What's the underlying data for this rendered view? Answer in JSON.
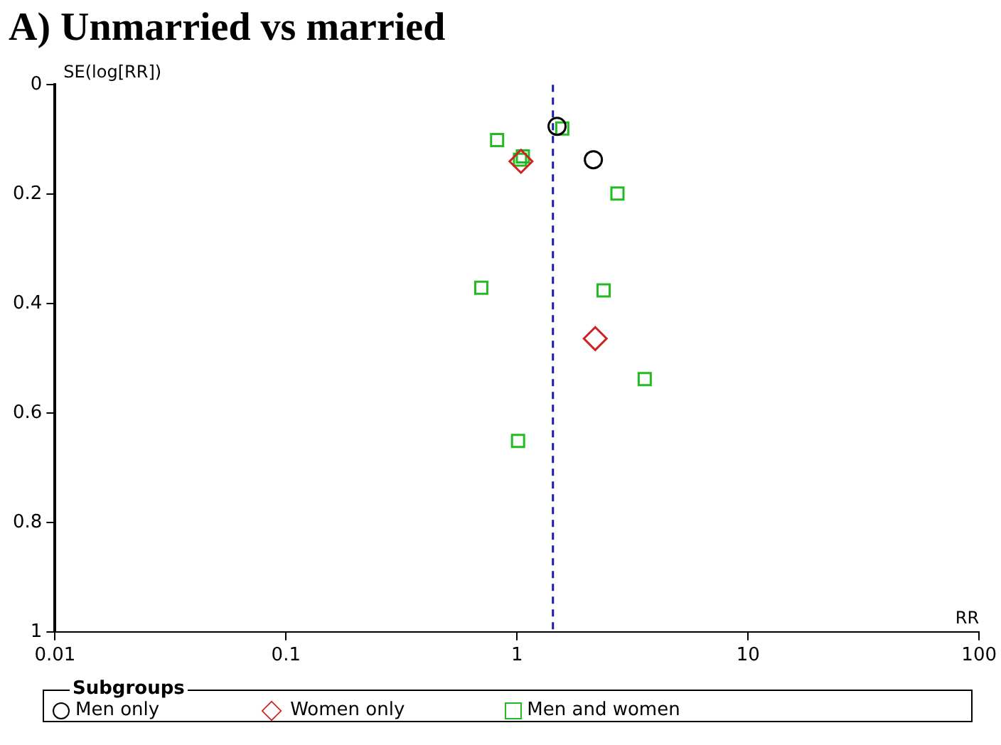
{
  "chart_data": {
    "type": "scatter",
    "title": "A) Unmarried vs married",
    "xlabel": "RR",
    "ylabel": "SE(log[RR])",
    "legend_title": "Subgroups",
    "legend": "bottom",
    "log": "x",
    "grid": false,
    "xlim": [
      0.01,
      100
    ],
    "xticks": [
      0.01,
      0.1,
      1,
      10,
      100
    ],
    "ylim": [
      1,
      0
    ],
    "yticks": [
      0,
      0.2,
      0.4,
      0.6,
      0.8,
      1
    ],
    "series": [
      {
        "name": "Men only",
        "color": "#000000",
        "marker": "circle",
        "x": [
          1.49,
          2.14
        ],
        "values": [
          0.076,
          0.137
        ]
      },
      {
        "name": "Women only",
        "color": "#cc2222",
        "marker": "diamond",
        "x": [
          1.04,
          2.18
        ],
        "values": [
          0.14,
          0.464
        ]
      },
      {
        "name": "Men and women",
        "color": "#22bb22",
        "marker": "square",
        "x": [
          1.57,
          0.82,
          1.06,
          1.03,
          2.72,
          0.7,
          2.37,
          3.57,
          1.01
        ],
        "values": [
          0.08,
          0.101,
          0.131,
          0.137,
          0.199,
          0.371,
          0.376,
          0.538,
          0.651
        ]
      }
    ],
    "ref_lines": [
      {
        "axis": "x",
        "value": 1.43,
        "color": "#1a1aaa",
        "line_style": "dashed"
      }
    ]
  }
}
